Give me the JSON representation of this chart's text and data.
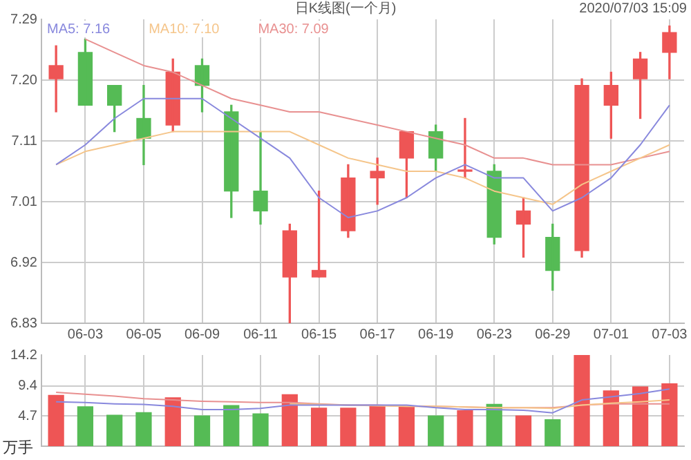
{
  "chart_data": [
    {
      "type": "candlestick",
      "title": "日K线图(一个月)",
      "annotations": [
        "2020/07/03 15:09"
      ],
      "categories": [
        null,
        "06-03",
        null,
        "06-05",
        null,
        "06-09",
        null,
        "06-11",
        null,
        "06-15",
        null,
        "06-17",
        null,
        "06-19",
        null,
        "06-23",
        null,
        "06-29",
        null,
        "07-01",
        null,
        "07-03"
      ],
      "ohlc": [
        [
          7.2,
          7.25,
          7.15,
          7.22
        ],
        [
          7.24,
          7.26,
          7.16,
          7.16
        ],
        [
          7.19,
          7.19,
          7.12,
          7.16
        ],
        [
          7.14,
          7.19,
          7.07,
          7.11
        ],
        [
          7.13,
          7.23,
          7.12,
          7.21
        ],
        [
          7.22,
          7.23,
          7.15,
          7.19
        ],
        [
          7.15,
          7.16,
          6.99,
          7.03
        ],
        [
          7.03,
          7.12,
          6.98,
          7.0
        ],
        [
          6.9,
          6.98,
          6.83,
          6.97
        ],
        [
          6.9,
          7.03,
          6.9,
          6.91
        ],
        [
          6.97,
          7.07,
          6.96,
          7.05
        ],
        [
          7.05,
          7.08,
          7.01,
          7.06
        ],
        [
          7.08,
          7.12,
          7.02,
          7.12
        ],
        [
          7.12,
          7.13,
          7.06,
          7.08
        ],
        [
          7.06,
          7.14,
          7.05,
          7.06
        ],
        [
          7.06,
          7.07,
          6.95,
          6.96
        ],
        [
          6.98,
          7.02,
          6.93,
          7.0
        ],
        [
          6.96,
          6.98,
          6.88,
          6.91
        ],
        [
          6.94,
          7.2,
          6.93,
          7.19
        ],
        [
          7.16,
          7.21,
          7.11,
          7.19
        ],
        [
          7.2,
          7.24,
          7.14,
          7.23
        ],
        [
          7.24,
          7.28,
          7.2,
          7.27
        ]
      ],
      "colors": [
        "#ee5555",
        "#55bb55",
        "#55bb55",
        "#55bb55",
        "#ee5555",
        "#55bb55",
        "#55bb55",
        "#55bb55",
        "#ee5555",
        "#ee5555",
        "#ee5555",
        "#ee5555",
        "#ee5555",
        "#55bb55",
        "#ee5555",
        "#55bb55",
        "#ee5555",
        "#55bb55",
        "#ee5555",
        "#ee5555",
        "#ee5555",
        "#ee5555"
      ],
      "series": [
        {
          "type": "line",
          "name": "MA5: 7.16",
          "color": "#8888dd",
          "values": [
            7.07,
            7.1,
            7.14,
            7.17,
            7.17,
            7.17,
            7.14,
            7.11,
            7.08,
            7.02,
            6.99,
            7.0,
            7.02,
            7.05,
            7.07,
            7.05,
            7.05,
            7.0,
            7.02,
            7.05,
            7.1,
            7.16
          ]
        },
        {
          "type": "line",
          "name": "MA10: 7.10",
          "color": "#f5c58a",
          "values": [
            7.07,
            7.09,
            7.1,
            7.11,
            7.12,
            7.12,
            7.12,
            7.12,
            7.12,
            7.1,
            7.08,
            7.07,
            7.06,
            7.06,
            7.05,
            7.03,
            7.02,
            7.01,
            7.04,
            7.06,
            7.08,
            7.1
          ]
        },
        {
          "type": "line",
          "name": "MA30: 7.09",
          "color": "#e89090",
          "values": [
            null,
            7.26,
            7.24,
            7.22,
            7.21,
            7.19,
            7.17,
            7.16,
            7.15,
            7.15,
            7.14,
            7.13,
            7.12,
            7.11,
            7.1,
            7.08,
            7.08,
            7.07,
            7.07,
            7.07,
            7.08,
            7.09
          ]
        }
      ],
      "ylim": [
        6.83,
        7.29
      ],
      "yticks": [
        6.83,
        {
          "value": 6.922,
          "label": "6.92"
        },
        {
          "value": 7.014,
          "label": "7.01"
        },
        {
          "value": 7.106,
          "label": "7.11"
        },
        {
          "value": 7.198,
          "label": "7.20"
        },
        7.29
      ],
      "grid": true,
      "legend": "top left",
      "marker": "none"
    },
    {
      "type": "bar",
      "ylabel": "万手",
      "categories": [
        null,
        null,
        null,
        null,
        null,
        null,
        null,
        null,
        null,
        null,
        null,
        null,
        null,
        null,
        null,
        null,
        null,
        null,
        null,
        null,
        null,
        null
      ],
      "series": [
        {
          "type": "bar",
          "colors": [
            "#ee5555",
            "#55bb55",
            "#55bb55",
            "#55bb55",
            "#ee5555",
            "#55bb55",
            "#55bb55",
            "#55bb55",
            "#ee5555",
            "#ee5555",
            "#ee5555",
            "#ee5555",
            "#ee5555",
            "#55bb55",
            "#ee5555",
            "#55bb55",
            "#ee5555",
            "#55bb55",
            "#ee5555",
            "#ee5555",
            "#ee5555",
            "#ee5555"
          ],
          "values": [
            8.0,
            6.2,
            4.9,
            5.3,
            7.6,
            4.8,
            6.4,
            5.1,
            8.1,
            6.0,
            6.0,
            6.4,
            6.2,
            4.8,
            5.6,
            6.6,
            4.8,
            4.2,
            14.2,
            8.7,
            9.3,
            9.8
          ]
        },
        {
          "type": "line",
          "color": "#8888dd",
          "values": [
            6.9,
            6.8,
            6.6,
            6.5,
            6.2,
            5.7,
            5.7,
            5.9,
            6.4,
            6.4,
            6.4,
            6.4,
            6.4,
            6.0,
            5.7,
            5.7,
            5.6,
            5.2,
            7.2,
            7.7,
            8.2,
            8.9
          ]
        },
        {
          "type": "line",
          "color": "#f5c58a",
          "values": [
            null,
            null,
            null,
            null,
            null,
            null,
            null,
            null,
            6.6,
            6.5,
            6.4,
            6.3,
            6.2,
            6.2,
            6.1,
            6.0,
            6.0,
            5.9,
            6.4,
            6.7,
            6.9,
            7.2
          ]
        },
        {
          "type": "line",
          "color": "#e89090",
          "values": [
            8.4,
            8.1,
            7.8,
            7.4,
            7.2,
            7.0,
            6.9,
            6.8,
            6.8,
            6.6,
            6.4,
            6.4,
            6.2,
            6.2,
            6.1,
            6.0,
            6.0,
            6.0,
            6.4,
            6.6,
            6.6,
            6.6
          ]
        }
      ],
      "ylim": [
        0,
        14.2
      ],
      "yticks": [
        4.7,
        9.4,
        14.2
      ],
      "grid": true,
      "tick_labels": "y",
      "marker": "none"
    }
  ]
}
